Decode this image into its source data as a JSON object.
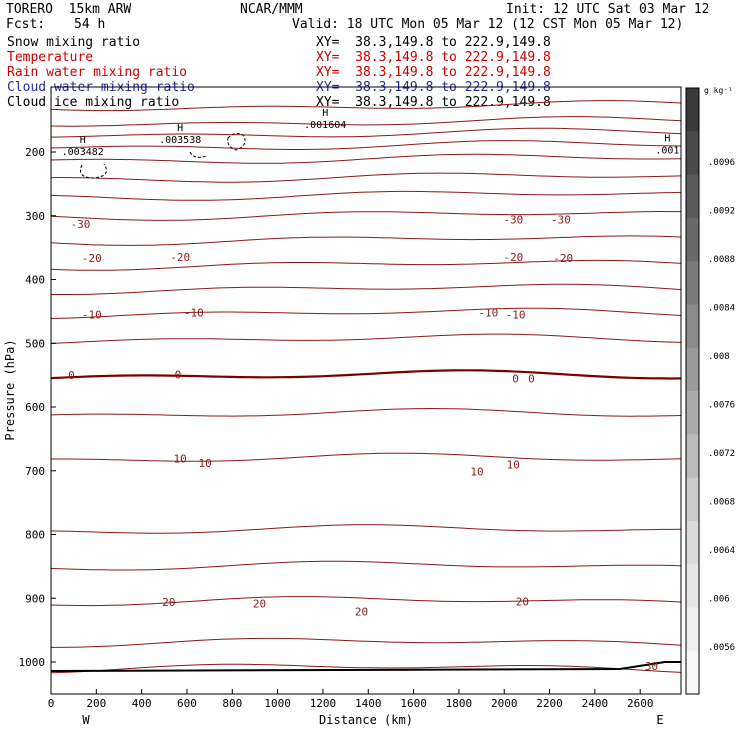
{
  "header": {
    "model_title": "TORERO  15km ARW",
    "center": "NCAR/MMM",
    "init": "Init: 12 UTC Sat 03 Mar 12",
    "fcst_label": "Fcst:",
    "fcst_value": "54 h",
    "valid": "Valid: 18 UTC Mon 05 Mar 12 (12 CST Mon 05 Mar 12)"
  },
  "fields": [
    {
      "label": "Snow mixing ratio",
      "xy": "XY=  38.3,149.8 to 222.9,149.8",
      "color": "#000000",
      "label_color": "#000000"
    },
    {
      "label": "Temperature",
      "xy": "XY=  38.3,149.8 to 222.9,149.8",
      "color": "#cc0000",
      "label_color": "#cc0000"
    },
    {
      "label": "Rain water mixing ratio",
      "xy": "XY=  38.3,149.8 to 222.9,149.8",
      "color": "#cc0000",
      "label_color": "#cc0000"
    },
    {
      "label": "Cloud water mixing ratio",
      "xy": "XY=  38.3,149.8 to 222.9,149.8",
      "color": "#2a2a9e",
      "label_color": "#2a2a9e"
    },
    {
      "label": "Cloud ice mixing ratio",
      "xy": "XY=  38.3,149.8 to 222.9,149.8",
      "color": "#000000",
      "label_color": "#000000"
    }
  ],
  "chart_data": {
    "type": "line",
    "xlabel": "Distance (km)",
    "ylabel": "Pressure (hPa)",
    "xlim": [
      0,
      2780
    ],
    "ylim": [
      1050,
      100
    ],
    "x_ticks": [
      0,
      200,
      400,
      600,
      800,
      1000,
      1200,
      1400,
      1600,
      1800,
      2000,
      2200,
      2400,
      2600
    ],
    "y_ticks": [
      200,
      300,
      400,
      500,
      600,
      700,
      800,
      900,
      1000
    ],
    "x_end_labels": {
      "left": "W",
      "right": "E"
    },
    "colorbar": {
      "unit_label": "g kg⁻¹",
      "tick_labels": [
        ".0096",
        ".0092",
        ".0088",
        ".0084",
        ".008",
        ".0076",
        ".0072",
        ".0068",
        ".0064",
        ".006",
        ".0056"
      ],
      "colors": [
        "#3a3a3a",
        "#4a4a4a",
        "#5a5a5a",
        "#6a6a6a",
        "#7a7a7a",
        "#8a8a8a",
        "#9a9a9a",
        "#aaaaaa",
        "#bababa",
        "#cacaca",
        "#dadada",
        "#e6e6e6",
        "#efefef",
        "#f7f7f7"
      ]
    },
    "snow_maxima": [
      {
        "x": 140,
        "p": 192,
        "marker": "H",
        "label": ".003482"
      },
      {
        "x": 570,
        "p": 173,
        "marker": "H",
        "label": ".003538"
      },
      {
        "x": 1210,
        "p": 150,
        "marker": "H",
        "label": ".001604"
      },
      {
        "x": 2720,
        "p": 190,
        "marker": "H",
        "label": ".001"
      }
    ],
    "temperature_labels": [
      {
        "x": 130,
        "p": 313,
        "text": "-30"
      },
      {
        "x": 2040,
        "p": 306,
        "text": "-30"
      },
      {
        "x": 2250,
        "p": 306,
        "text": "-30"
      },
      {
        "x": 180,
        "p": 366,
        "text": "-20"
      },
      {
        "x": 570,
        "p": 365,
        "text": "-20"
      },
      {
        "x": 2040,
        "p": 365,
        "text": "-20"
      },
      {
        "x": 2260,
        "p": 366,
        "text": "-20"
      },
      {
        "x": 180,
        "p": 455,
        "text": "-10"
      },
      {
        "x": 630,
        "p": 452,
        "text": "-10"
      },
      {
        "x": 1930,
        "p": 452,
        "text": "-10"
      },
      {
        "x": 2050,
        "p": 455,
        "text": "-10"
      },
      {
        "x": 90,
        "p": 550,
        "text": "0"
      },
      {
        "x": 560,
        "p": 549,
        "text": "0"
      },
      {
        "x": 2050,
        "p": 555,
        "text": "0"
      },
      {
        "x": 2120,
        "p": 555,
        "text": "0"
      },
      {
        "x": 570,
        "p": 681,
        "text": "10"
      },
      {
        "x": 680,
        "p": 688,
        "text": "10"
      },
      {
        "x": 1880,
        "p": 701,
        "text": "10"
      },
      {
        "x": 2040,
        "p": 690,
        "text": "10"
      },
      {
        "x": 520,
        "p": 906,
        "text": "20"
      },
      {
        "x": 920,
        "p": 908,
        "text": "20"
      },
      {
        "x": 1370,
        "p": 921,
        "text": "20"
      },
      {
        "x": 2080,
        "p": 905,
        "text": "20"
      },
      {
        "x": 2650,
        "p": 1006,
        "text": "30"
      }
    ],
    "isotherm_pressures": [
      128,
      153,
      171,
      190,
      211,
      240,
      268,
      299,
      338,
      377,
      415,
      453,
      494,
      551,
      611,
      681,
      793,
      850,
      905,
      970,
      1010
    ]
  }
}
